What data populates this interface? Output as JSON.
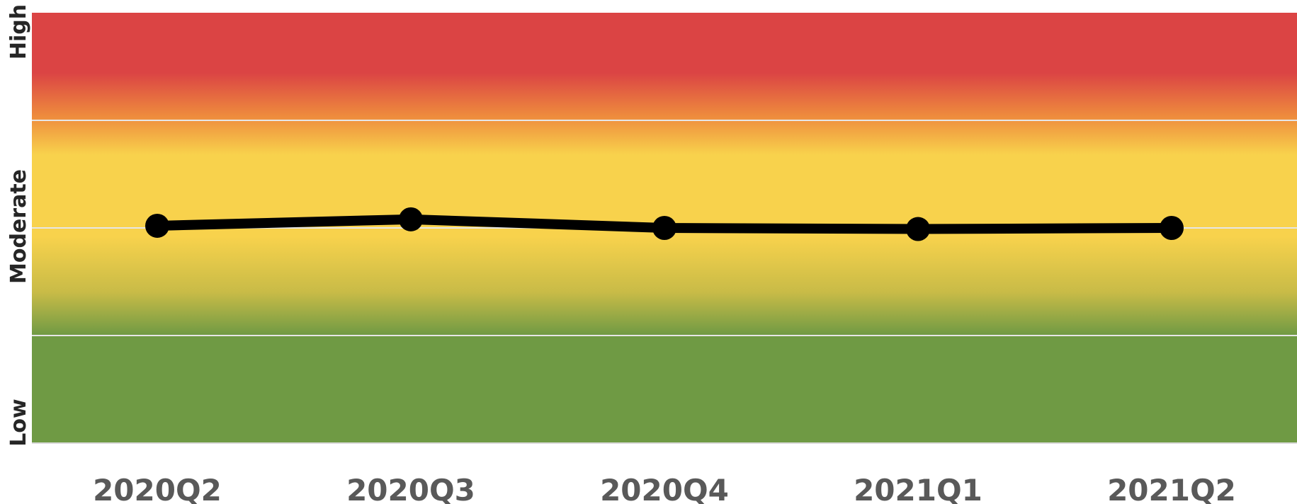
{
  "chart_data": {
    "type": "line",
    "categories": [
      "2020Q2",
      "2020Q3",
      "2020Q4",
      "2021Q1",
      "2021Q2"
    ],
    "series": [
      {
        "values": [
          2.02,
          2.08,
          2.0,
          1.99,
          2.0
        ]
      }
    ],
    "ylim": [
      0,
      4
    ],
    "y_band_labels": [
      "Low",
      "Moderate",
      "High"
    ],
    "gridlines_at": [
      1,
      2,
      3
    ],
    "colors": {
      "high": "#db4444",
      "orange": "#ee8b3d",
      "moderate": "#f8d24c",
      "transition": "#c8bb47",
      "low": "#6f9a44",
      "line": "#000000",
      "gridline": "#e6e6e6"
    }
  }
}
